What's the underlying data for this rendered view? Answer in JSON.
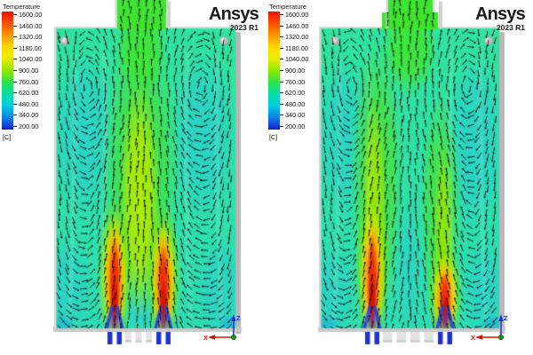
{
  "branding": {
    "logo_text": "Ansys",
    "version_text": "2023 R1"
  },
  "legend": {
    "title": "Temperature",
    "unit": "[C]",
    "ticks": [
      "1600.00",
      "1460.00",
      "1320.00",
      "1180.00",
      "1040.00",
      "900.00",
      "760.00",
      "620.00",
      "480.00",
      "340.00",
      "200.00"
    ]
  },
  "triad": {
    "x_label": "X",
    "z_label": "Z",
    "x_color": "#dd1100",
    "z_color": "#1a2fe0",
    "origin_color": "#0d9a10"
  },
  "palette": {
    "colorbar": [
      "#ee1000",
      "#fb5000",
      "#ff9400",
      "#ffd900",
      "#e8f000",
      "#8fe800",
      "#2ae24a",
      "#00dfa6",
      "#00cbe2",
      "#0f7fe8",
      "#1020cc"
    ],
    "field_base": "#2fe2a6",
    "recirculation_cyan": "#2bd2c6",
    "plume_green": "#45e138",
    "plume_core_yellow": "#b9ec00",
    "flame_outer_yellow": "#ffe100",
    "flame_mid_orange": "#ff8800",
    "flame_core_red": "#ee2210",
    "inlet_jet_blue": "#2642e0",
    "wall_gray": "#c9c9c9",
    "shadow_gray": "#b7b7b7",
    "vector_black": "#101010"
  },
  "panels": [
    {
      "name": "contour-vectors-case-1"
    },
    {
      "name": "contour-vectors-case-2"
    }
  ]
}
